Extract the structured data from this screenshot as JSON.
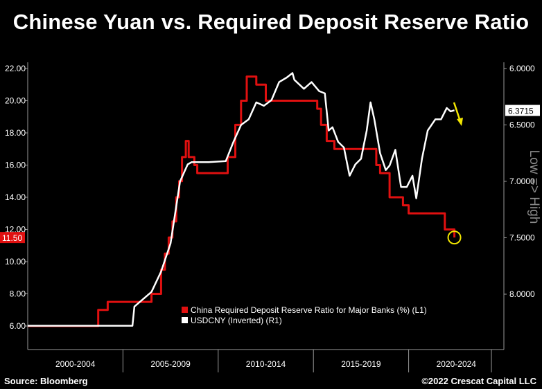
{
  "title": "Chinese Yuan vs. Required Deposit Reserve Ratio",
  "source": "Source: Bloomberg",
  "copyright": "©2022 Crescat Capital LLC",
  "axis_side_label": "Low => High",
  "colors": {
    "background": "#000000",
    "rrr": "#e01010",
    "usdcny": "#ffffff",
    "highlight": "#f2e600",
    "axis": "#9a9a9a"
  },
  "chart_data": {
    "type": "line",
    "x_groups": [
      "2000-2004",
      "2005-2009",
      "2010-2014",
      "2015-2019",
      "2020-2024"
    ],
    "xlim": [
      2000,
      2025
    ],
    "y_left": {
      "ticks": [
        "6.00",
        "8.00",
        "10.00",
        "12.00",
        "14.00",
        "16.00",
        "18.00",
        "20.00",
        "22.00"
      ],
      "ylim": [
        6,
        22
      ],
      "last_value_label": "11.50"
    },
    "y_right": {
      "ticks": [
        "6.0000",
        "6.5000",
        "7.0000",
        "7.5000",
        "8.0000"
      ],
      "ylim_inverted": [
        6.0,
        8.3
      ],
      "last_value_label": "6.3715"
    },
    "legend": {
      "position": "bottom-center",
      "entries": [
        "China Required Deposit Reserve Ratio for Major Banks (%) (L1)",
        "USDCNY (Inverted) (R1)"
      ]
    },
    "series": [
      {
        "name": "China Required Deposit Reserve Ratio for Major Banks (%) (L1)",
        "axis": "left",
        "step": true,
        "x": [
          2000.0,
          2003.7,
          2004.2,
          2006.5,
          2007.0,
          2007.2,
          2007.4,
          2007.6,
          2007.8,
          2007.95,
          2008.1,
          2008.3,
          2008.45,
          2008.75,
          2008.9,
          2009.5,
          2010.5,
          2010.9,
          2011.2,
          2011.5,
          2012.0,
          2012.5,
          2015.2,
          2015.4,
          2015.7,
          2016.1,
          2016.2,
          2018.3,
          2018.5,
          2019.0,
          2019.7,
          2020.0,
          2021.5,
          2021.9,
          2022.4
        ],
        "values": [
          6.0,
          7.0,
          7.5,
          8.0,
          9.5,
          10.5,
          11.5,
          12.5,
          14.0,
          15.0,
          16.5,
          17.5,
          16.5,
          16.0,
          15.5,
          15.5,
          16.5,
          18.5,
          20.0,
          21.5,
          21.0,
          20.0,
          19.5,
          18.5,
          17.5,
          17.0,
          17.0,
          16.0,
          15.5,
          14.0,
          13.5,
          13.0,
          13.0,
          12.0,
          11.5
        ]
      },
      {
        "name": "USDCNY (Inverted) (R1)",
        "axis": "right",
        "x": [
          2000.0,
          2005.5,
          2005.6,
          2006.5,
          2007.0,
          2007.5,
          2008.0,
          2008.4,
          2008.6,
          2009.5,
          2010.4,
          2010.8,
          2011.2,
          2011.6,
          2012.0,
          2012.4,
          2012.8,
          2013.2,
          2013.6,
          2013.9,
          2014.0,
          2014.5,
          2014.9,
          2015.3,
          2015.6,
          2015.8,
          2016.0,
          2016.3,
          2016.6,
          2016.9,
          2017.2,
          2017.5,
          2017.8,
          2018.0,
          2018.2,
          2018.5,
          2018.8,
          2019.0,
          2019.3,
          2019.6,
          2019.9,
          2020.2,
          2020.4,
          2020.7,
          2021.0,
          2021.4,
          2021.7,
          2022.0,
          2022.2,
          2022.4
        ],
        "values": [
          8.28,
          8.28,
          8.11,
          7.98,
          7.8,
          7.55,
          7.0,
          6.85,
          6.83,
          6.83,
          6.82,
          6.65,
          6.5,
          6.45,
          6.3,
          6.33,
          6.28,
          6.12,
          6.08,
          6.04,
          6.1,
          6.18,
          6.12,
          6.2,
          6.22,
          6.55,
          6.52,
          6.65,
          6.7,
          6.95,
          6.85,
          6.8,
          6.55,
          6.3,
          6.45,
          6.75,
          6.9,
          6.86,
          6.72,
          7.05,
          7.05,
          6.95,
          7.15,
          6.8,
          6.55,
          6.45,
          6.45,
          6.35,
          6.38,
          6.37
        ]
      }
    ],
    "highlight_circle": {
      "x": 2022.4,
      "left_value": 11.5
    },
    "arrow_annotation": "yellow downward arrow near last USDCNY value",
    "grid": false
  }
}
